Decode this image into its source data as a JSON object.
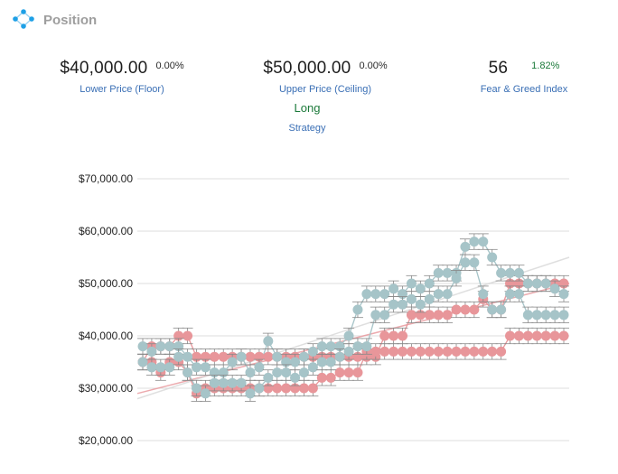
{
  "header": {
    "title": "Position",
    "icon": "network-nodes-icon"
  },
  "stats": {
    "floor": {
      "value": "$40,000.00",
      "change": "0.00%",
      "label": "Lower Price (Floor)"
    },
    "ceiling": {
      "value": "$50,000.00",
      "change": "0.00%",
      "label": "Upper Price (Ceiling)"
    },
    "fear_greed": {
      "value": "56",
      "change": "1.82%",
      "label": "Fear & Greed Index"
    },
    "strategy": {
      "value": "Long",
      "label": "Strategy"
    }
  },
  "colors": {
    "accent_blue": "#3a6fb5",
    "positive_green": "#1c7a3a",
    "series_red": "#e8969a",
    "series_teal": "#a6c4c8"
  },
  "chart_data": {
    "type": "scatter",
    "title": "",
    "xlabel": "",
    "ylabel": "",
    "ylim": [
      20000,
      70000
    ],
    "yticks": [
      "$70,000.00",
      "$60,000.00",
      "$50,000.00",
      "$40,000.00",
      "$30,000.00",
      "$20,000.00"
    ],
    "ytick_values": [
      70000,
      60000,
      50000,
      40000,
      30000,
      20000
    ],
    "grid": true,
    "error_bars": true,
    "x_count": 48,
    "series": [
      {
        "color": "#e8969a",
        "role": "ceiling",
        "values": [
          35000,
          38000,
          38000,
          38000,
          40000,
          40000,
          36000,
          36000,
          36000,
          36000,
          36000,
          36000,
          36000,
          36000,
          36000,
          36000,
          36000,
          36000,
          36000,
          36000,
          36000,
          36000,
          36000,
          36000,
          36000,
          36000,
          36000,
          40000,
          40000,
          40000,
          44000,
          44000,
          44000,
          44000,
          44000,
          45000,
          45000,
          45000,
          47000,
          45000,
          45000,
          50000,
          50000,
          50000,
          50000,
          50000,
          50000,
          50000
        ]
      },
      {
        "color": "#e8969a",
        "role": "floor",
        "values": [
          35000,
          35000,
          33000,
          35000,
          35000,
          33000,
          29000,
          30000,
          30000,
          30000,
          30000,
          30000,
          30000,
          30000,
          30000,
          30000,
          30000,
          30000,
          30000,
          30000,
          32000,
          32000,
          33000,
          33000,
          33000,
          37000,
          37000,
          37000,
          37000,
          37000,
          37000,
          37000,
          37000,
          37000,
          37000,
          37000,
          37000,
          37000,
          37000,
          37000,
          37000,
          40000,
          40000,
          40000,
          40000,
          40000,
          40000,
          40000
        ]
      },
      {
        "color": "#a6c4c8",
        "role": "price_high",
        "values": [
          38000,
          37000,
          38000,
          38000,
          38000,
          36000,
          34000,
          34000,
          33000,
          33000,
          35000,
          36000,
          33000,
          34000,
          39000,
          36000,
          35000,
          35000,
          36000,
          37000,
          38000,
          38000,
          38000,
          40000,
          45000,
          48000,
          48000,
          48000,
          49000,
          48000,
          50000,
          49000,
          50000,
          52000,
          52000,
          52000,
          57000,
          58000,
          58000,
          55000,
          52000,
          52000,
          52000,
          50000,
          50000,
          50000,
          49000,
          48000
        ]
      },
      {
        "color": "#a6c4c8",
        "role": "price_low",
        "values": [
          35000,
          34000,
          34000,
          34000,
          36000,
          33000,
          30000,
          29000,
          31000,
          31000,
          31000,
          31000,
          29000,
          30000,
          32000,
          33000,
          33000,
          32000,
          33000,
          34000,
          35000,
          35000,
          36000,
          37000,
          38000,
          38000,
          44000,
          44000,
          46000,
          46000,
          47000,
          46000,
          47000,
          48000,
          48000,
          51000,
          54000,
          54000,
          48000,
          45000,
          45000,
          48000,
          48000,
          44000,
          44000,
          44000,
          44000,
          44000
        ]
      }
    ],
    "trendlines": [
      {
        "color": "#e8969a",
        "from": 29000,
        "to": 50000
      },
      {
        "color": "#d8d8d8",
        "from": 28000,
        "to": 55000
      }
    ]
  }
}
